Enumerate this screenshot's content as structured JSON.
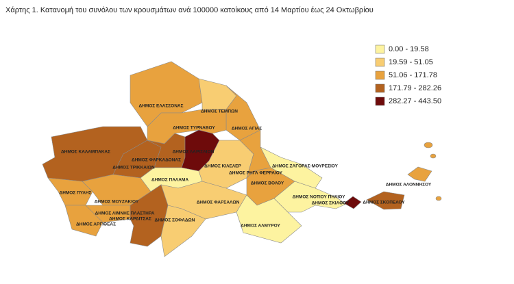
{
  "title": "Χάρτης 1. Κατανομή του συνόλου των κρουσμάτων ανά 100000 κατοίκους από 14 Μαρτίου έως 24 Οκτωβρίου",
  "legend": [
    {
      "label": "0.00 - 19.58",
      "color": "#fdf3a0"
    },
    {
      "label": "19.59 - 51.05",
      "color": "#f8cd72"
    },
    {
      "label": "51.06 - 171.78",
      "color": "#e8a23e"
    },
    {
      "label": "171.79 - 282.26",
      "color": "#b3621f"
    },
    {
      "label": "282.27 - 443.50",
      "color": "#6e0b0b"
    }
  ],
  "regions": [
    {
      "label": "ΔΗΜΟΣ ΕΛΑΣΣΟΝΑΣ",
      "color": "#e8a23e"
    },
    {
      "label": "ΔΗΜΟΣ ΤΕΜΠΩΝ",
      "color": "#f8cd72"
    },
    {
      "label": "ΔΗΜΟΣ ΑΓΙΑΣ",
      "color": "#e8a23e"
    },
    {
      "label": "ΔΗΜΟΣ ΤΥΡΝΑΒΟΥ",
      "color": "#e8a23e"
    },
    {
      "label": "ΔΗΜΟΣ ΚΑΛΑΜΠΑΚΑΣ",
      "color": "#b3621f"
    },
    {
      "label": "ΔΗΜΟΣ ΤΡΙΚΚΑΙΩΝ",
      "color": "#b3621f"
    },
    {
      "label": "ΔΗΜΟΣ ΦΑΡΚΑΔΟΝΑΣ",
      "color": "#b3621f"
    },
    {
      "label": "ΔΗΜΟΣ ΛΑΡΙΣΑΙΩΝ",
      "color": "#6e0b0b"
    },
    {
      "label": "ΔΗΜΟΣ ΚΙΛΕΛΕΡ",
      "color": "#f8cd72"
    },
    {
      "label": "ΔΗΜΟΣ ΖΑΓΟΡΑΣ-ΜΟΥΡΕΣΙΟΥ",
      "color": "#fdf3a0"
    },
    {
      "label": "ΔΗΜΟΣ ΡΗΓΑ ΦΕΡΡΑΙΟΥ",
      "color": "#e8a23e"
    },
    {
      "label": "ΔΗΜΟΣ ΒΟΛΟΥ",
      "color": "#e8a23e"
    },
    {
      "label": "ΔΗΜΟΣ ΠΑΛΑΜΑ",
      "color": "#fdf3a0"
    },
    {
      "label": "ΔΗΜΟΣ ΠΥΛΗΣ",
      "color": "#e8a23e"
    },
    {
      "label": "ΔΗΜΟΣ ΜΟΥΖΑΚΙΟΥ",
      "color": "#e8a23e"
    },
    {
      "label": "ΔΗΜΟΣ ΦΑΡΣΑΛΩΝ",
      "color": "#f8cd72"
    },
    {
      "label": "ΔΗΜΟΣ ΛΙΜΝΗΣ ΠΛΑΣΤΗΡΑ",
      "color": "#e8a23e"
    },
    {
      "label": "ΔΗΜΟΣ ΚΑΡΔΙΤΣΑΣ",
      "color": "#b3621f"
    },
    {
      "label": "ΔΗΜΟΣ ΑΡΓΙΘΕΑΣ",
      "color": "#e8a23e"
    },
    {
      "label": "ΔΗΜΟΣ ΣΟΦΑΔΩΝ",
      "color": "#f8cd72"
    },
    {
      "label": "ΔΗΜΟΣ ΑΛΜΥΡΟΥ",
      "color": "#fdf3a0"
    },
    {
      "label": "ΔΗΜΟΣ ΝΟΤΙΟΥ ΠΗΛΙΟΥ",
      "color": "#fdf3a0"
    },
    {
      "label": "ΔΗΜΟΣ ΣΚΙΑΘΟΥ",
      "color": "#6e0b0b"
    },
    {
      "label": "ΔΗΜΟΣ ΣΚΟΠΕΛΟΥ",
      "color": "#b3621f"
    },
    {
      "label": "ΔΗΜΟΣ ΑΛΟΝΝΗΣΟΥ",
      "color": "#e8a23e"
    }
  ]
}
